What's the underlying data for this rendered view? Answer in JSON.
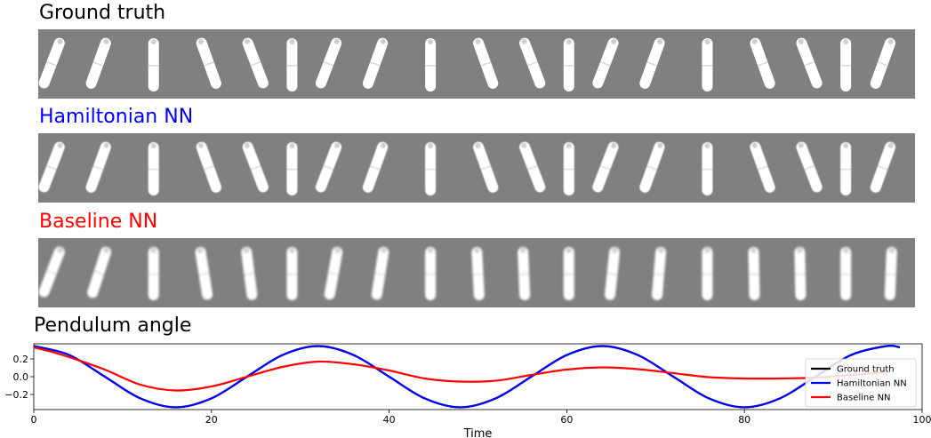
{
  "panels": [
    {
      "title": "Ground truth",
      "color": "#000000",
      "blur": 0,
      "angles": [
        0.35,
        0.33,
        0.0,
        -0.33,
        -0.35,
        0.0,
        0.35,
        0.33,
        0.0,
        -0.33,
        -0.35,
        0.0,
        0.35,
        0.33,
        0.0,
        -0.33,
        -0.35,
        0.0,
        0.33
      ]
    },
    {
      "title": "Hamiltonian NN",
      "color": "#0000ff",
      "blur": 1,
      "angles": [
        0.35,
        0.33,
        0.0,
        -0.33,
        -0.35,
        0.0,
        0.35,
        0.33,
        0.0,
        -0.33,
        -0.35,
        0.0,
        0.35,
        0.33,
        0.0,
        -0.33,
        -0.35,
        0.0,
        0.33
      ]
    },
    {
      "title": "Baseline NN",
      "color": "#ff0000",
      "blur": 2,
      "angles": [
        0.35,
        0.3,
        0.0,
        -0.15,
        -0.12,
        0.0,
        0.17,
        0.15,
        0.0,
        -0.05,
        -0.04,
        0.0,
        0.1,
        0.08,
        0.0,
        -0.02,
        -0.02,
        0.0,
        0.04
      ]
    }
  ],
  "chart_data": {
    "type": "line",
    "title": "Pendulum angle",
    "xlabel": "Time",
    "ylabel": "",
    "xlim": [
      0,
      100
    ],
    "ylim": [
      -0.37,
      0.37
    ],
    "xticks": [
      0,
      20,
      40,
      60,
      80,
      100
    ],
    "yticks": [
      -0.2,
      0.0,
      0.2
    ],
    "ytick_labels": [
      "−0.2",
      "0.0",
      "0.2"
    ],
    "legend_position": "right",
    "series": [
      {
        "name": "Ground truth",
        "color": "#000000",
        "x": [
          0,
          4,
          8,
          12,
          16,
          20,
          24,
          28,
          32,
          36,
          40,
          44,
          48,
          52,
          56,
          60,
          64,
          68,
          72,
          76,
          80,
          84,
          88,
          92,
          96,
          97.5
        ],
        "y": [
          0.345,
          0.244,
          0.0,
          -0.244,
          -0.345,
          -0.244,
          0.0,
          0.244,
          0.345,
          0.244,
          0.0,
          -0.244,
          -0.345,
          -0.244,
          0.0,
          0.244,
          0.345,
          0.244,
          0.0,
          -0.244,
          -0.345,
          -0.244,
          0.0,
          0.244,
          0.345,
          0.33
        ]
      },
      {
        "name": "Hamiltonian NN",
        "color": "#0000ff",
        "x": [
          0,
          4,
          8,
          12,
          16,
          20,
          24,
          28,
          32,
          36,
          40,
          44,
          48,
          52,
          56,
          60,
          64,
          68,
          72,
          76,
          80,
          84,
          88,
          92,
          96,
          97.5
        ],
        "y": [
          0.345,
          0.244,
          0.0,
          -0.244,
          -0.345,
          -0.244,
          0.0,
          0.244,
          0.345,
          0.244,
          0.0,
          -0.244,
          -0.345,
          -0.244,
          0.0,
          0.244,
          0.345,
          0.244,
          0.0,
          -0.244,
          -0.345,
          -0.244,
          0.0,
          0.244,
          0.345,
          0.33
        ]
      },
      {
        "name": "Baseline NN",
        "color": "#ff0000",
        "x": [
          0,
          2,
          4,
          8,
          12,
          16,
          20,
          24,
          28,
          32,
          36,
          40,
          44,
          48,
          52,
          56,
          60,
          64,
          68,
          72,
          76,
          80,
          84,
          88,
          92,
          96
        ],
        "y": [
          0.33,
          0.28,
          0.22,
          0.08,
          -0.09,
          -0.155,
          -0.11,
          0.0,
          0.11,
          0.17,
          0.14,
          0.07,
          -0.02,
          -0.055,
          -0.045,
          0.02,
          0.08,
          0.105,
          0.085,
          0.04,
          -0.005,
          -0.02,
          -0.02,
          -0.01,
          0.02,
          0.05
        ]
      }
    ]
  }
}
